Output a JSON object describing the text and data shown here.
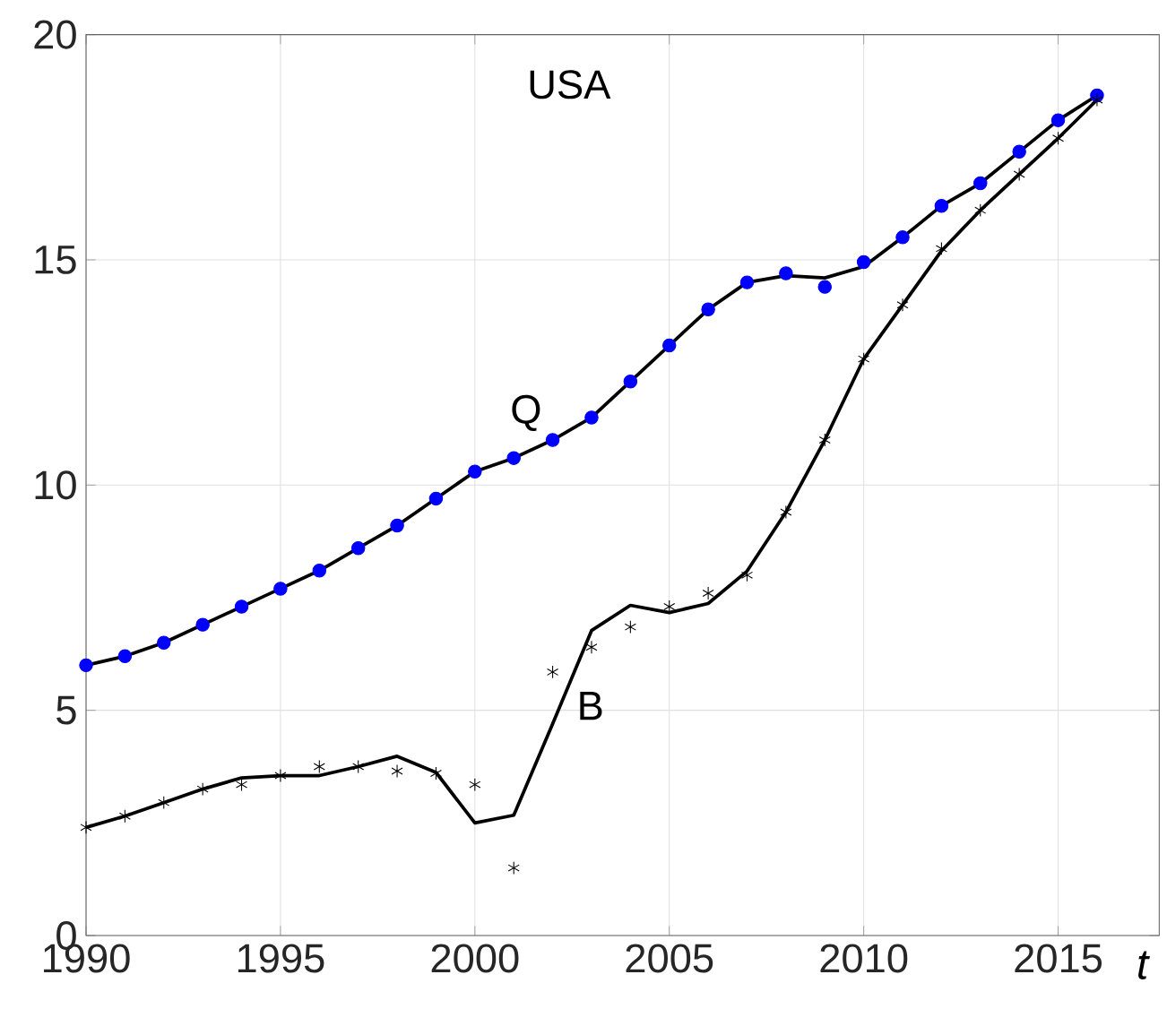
{
  "chart_data": {
    "type": "line",
    "title": "USA",
    "xlabel": "t",
    "x": [
      1990,
      1991,
      1992,
      1993,
      1994,
      1995,
      1996,
      1997,
      1998,
      1999,
      2000,
      2001,
      2002,
      2003,
      2004,
      2005,
      2006,
      2007,
      2008,
      2009,
      2010,
      2011,
      2012,
      2013,
      2014,
      2015,
      2016
    ],
    "series": [
      {
        "type": "scatter",
        "marker": "circle",
        "color": "#0000ff",
        "values": [
          6.0,
          6.2,
          6.5,
          6.9,
          7.3,
          7.7,
          8.1,
          8.6,
          9.1,
          9.7,
          10.3,
          10.6,
          11.0,
          11.5,
          12.3,
          13.1,
          13.9,
          14.5,
          14.7,
          14.4,
          14.95,
          15.5,
          16.2,
          16.7,
          17.4,
          18.1,
          18.65
        ]
      },
      {
        "marker": "none",
        "color": "#000000",
        "values": [
          6.0,
          6.2,
          6.5,
          6.9,
          7.3,
          7.7,
          8.1,
          8.6,
          9.1,
          9.7,
          10.3,
          10.6,
          11.0,
          11.5,
          12.3,
          13.1,
          13.9,
          14.5,
          14.65,
          14.6,
          14.85,
          15.5,
          16.2,
          16.7,
          17.4,
          18.1,
          18.65
        ]
      },
      {
        "type": "scatter",
        "marker": "cross",
        "color": "#000000",
        "values": [
          2.4,
          2.65,
          2.95,
          3.25,
          3.35,
          3.55,
          3.75,
          3.75,
          3.65,
          3.6,
          3.35,
          1.5,
          5.85,
          6.4,
          6.85,
          7.3,
          7.6,
          8.0,
          9.4,
          11.0,
          12.8,
          14.0,
          15.25,
          16.1,
          16.9,
          17.7,
          18.55
        ]
      },
      {
        "marker": "none",
        "color": "#000000",
        "values": [
          2.4,
          2.65,
          2.95,
          3.25,
          3.5,
          3.55,
          3.55,
          3.75,
          3.98,
          3.62,
          2.5,
          2.67,
          4.7,
          6.77,
          7.33,
          7.17,
          7.37,
          8.09,
          9.4,
          11.0,
          12.8,
          14.0,
          15.2,
          16.1,
          16.9,
          17.7,
          18.55
        ]
      }
    ],
    "annotations": [
      "Q",
      "B"
    ],
    "xlim": [
      1990,
      2017.6
    ],
    "ylim": [
      0,
      20
    ],
    "xticks": [
      1990,
      1995,
      2000,
      2005,
      2010,
      2015
    ],
    "yticks": [
      0,
      5,
      10,
      15,
      20
    ],
    "grid": true,
    "line_style": "solid"
  }
}
